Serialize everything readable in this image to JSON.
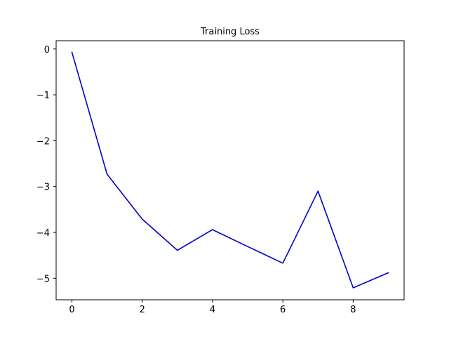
{
  "chart_data": {
    "type": "line",
    "title": "Training Loss",
    "xlabel": "",
    "ylabel": "",
    "x": [
      0,
      1,
      2,
      3,
      4,
      5,
      6,
      7,
      8,
      9
    ],
    "series": [
      {
        "values": [
          -0.07,
          -2.73,
          -3.71,
          -4.39,
          -3.94,
          -4.31,
          -4.67,
          -3.1,
          -5.21,
          -4.88
        ],
        "color": "#0000cc"
      }
    ],
    "xlim": [
      -0.45,
      9.45
    ],
    "ylim": [
      -5.47,
      0.18
    ],
    "xticks": [
      "0",
      "2",
      "4",
      "6",
      "8"
    ],
    "yticks": [
      "0",
      "−1",
      "−2",
      "−3",
      "−4",
      "−5"
    ],
    "grid": false,
    "legend": false
  }
}
